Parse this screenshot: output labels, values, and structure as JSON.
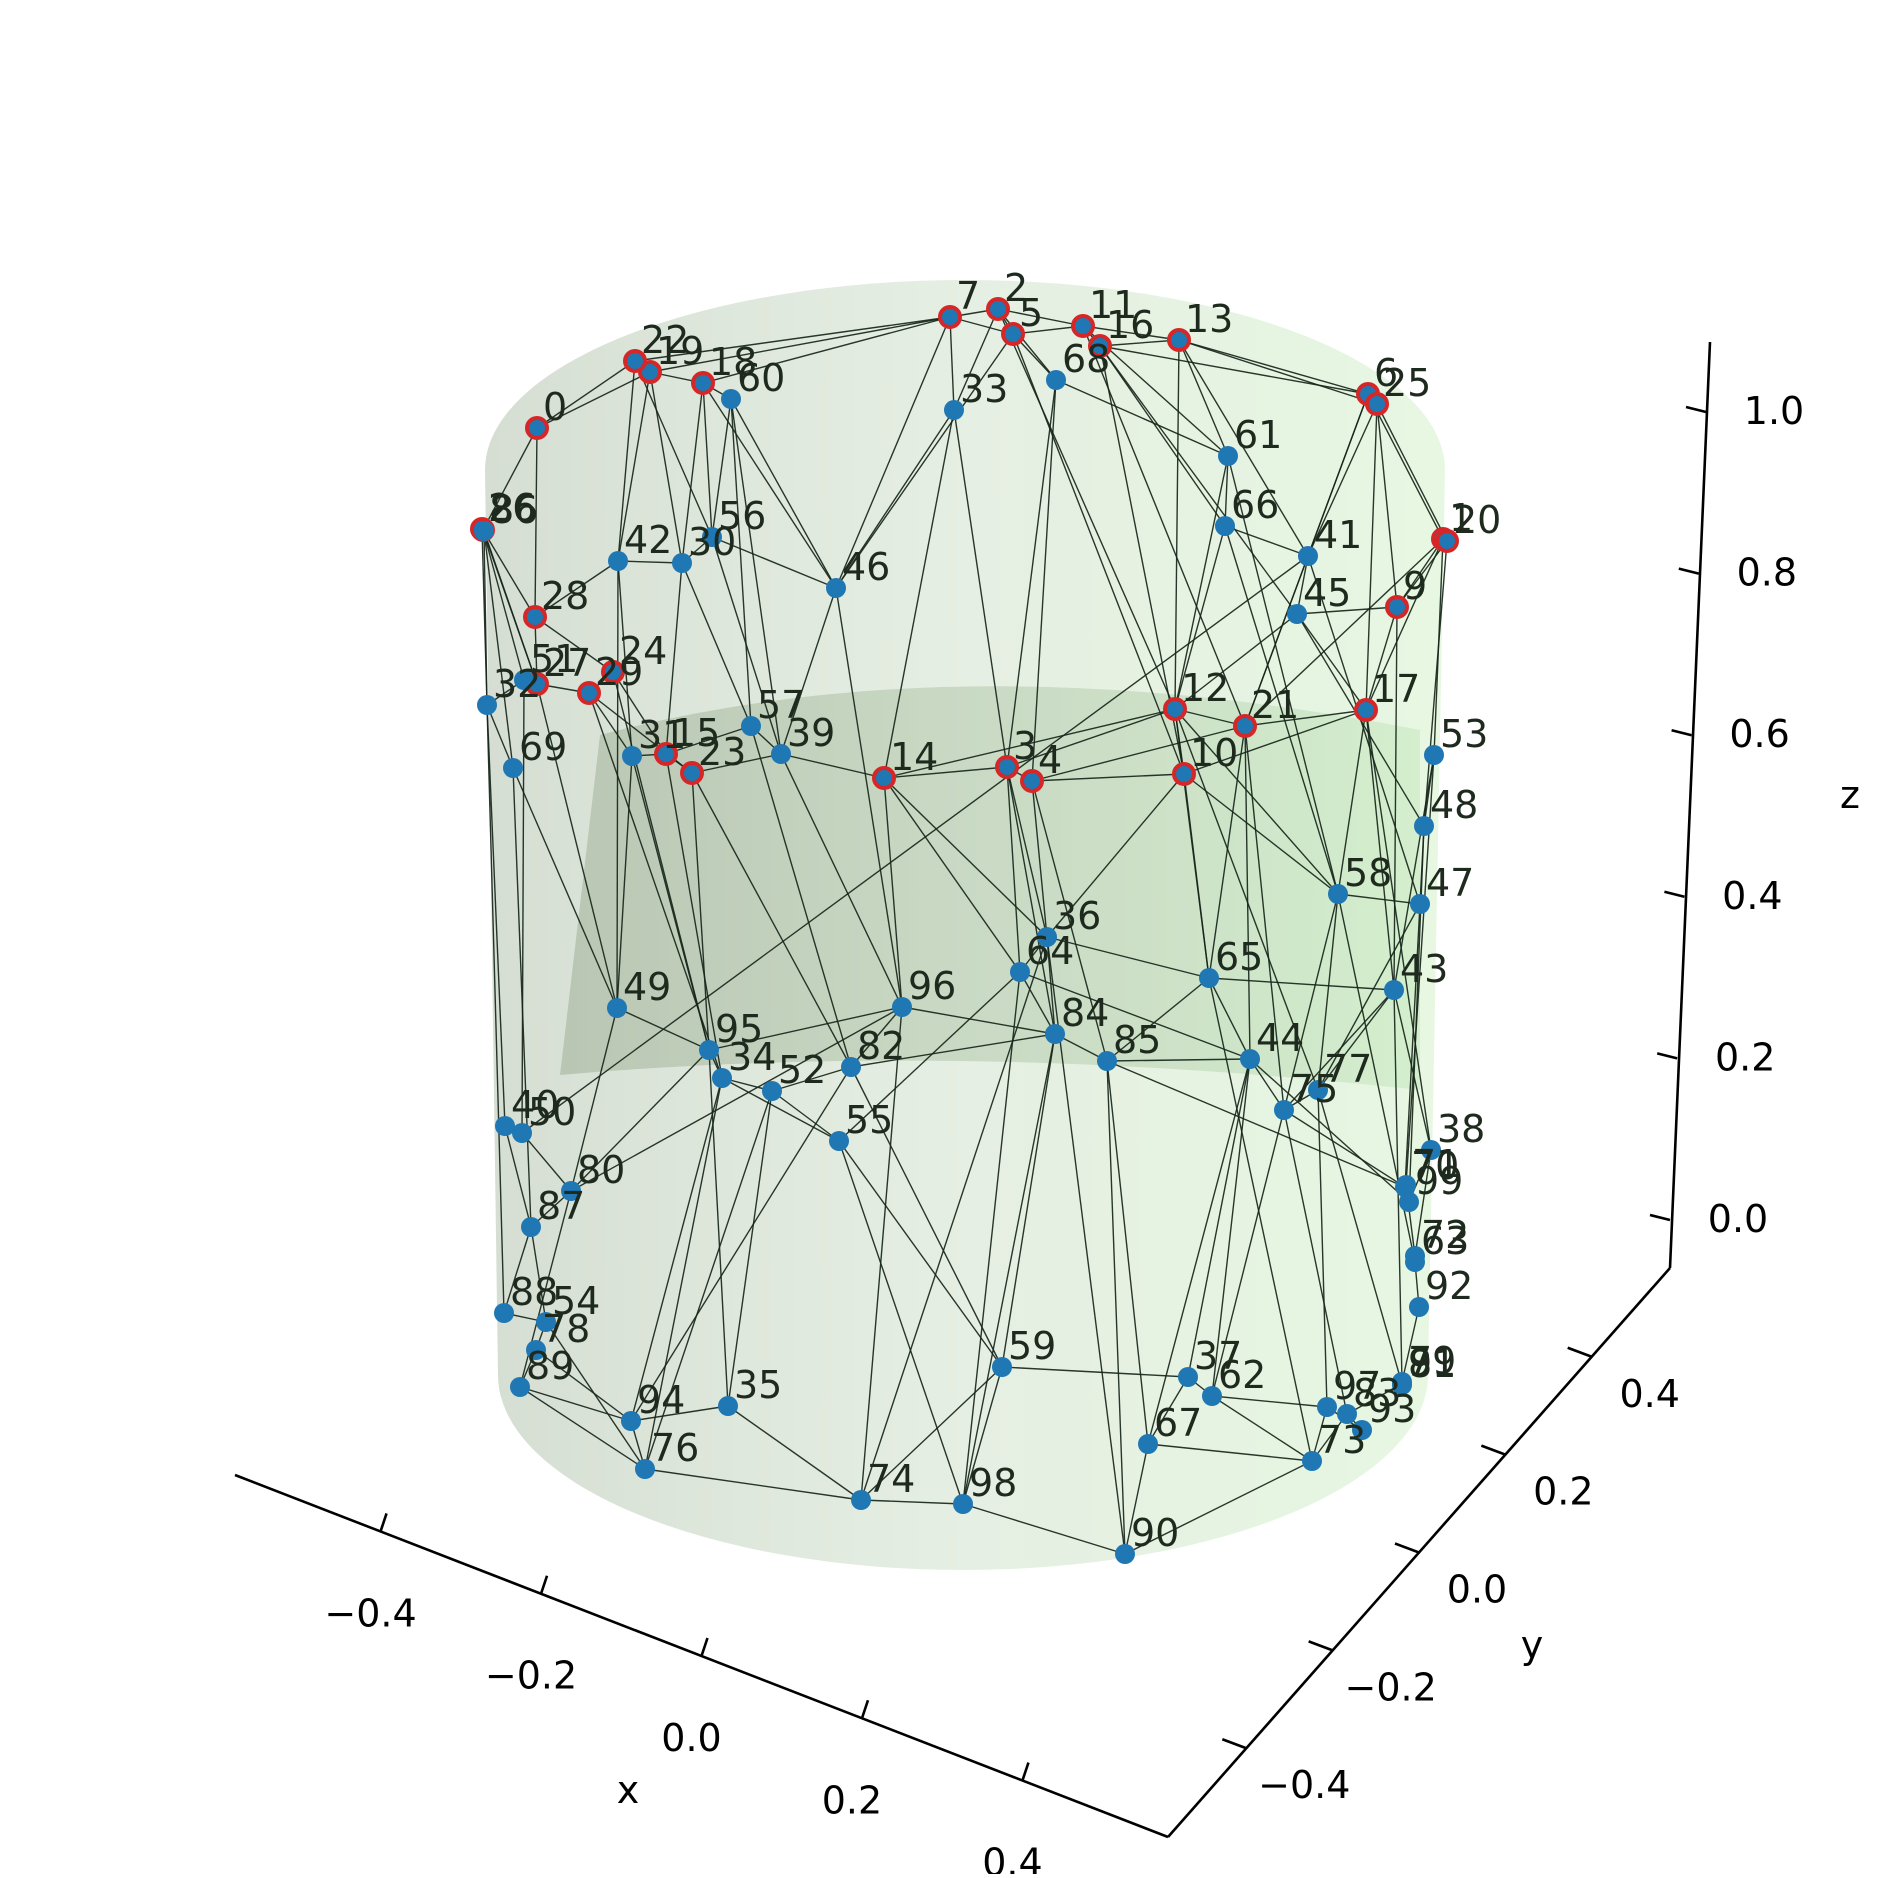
{
  "chart_data": {
    "type": "scatter",
    "title": "",
    "xlabel": "x",
    "ylabel": "y",
    "zlabel": "z",
    "xlim": [
      -0.5,
      0.5
    ],
    "ylim": [
      -0.5,
      0.5
    ],
    "zlim": [
      -0.05,
      1.05
    ],
    "x_ticks": [
      "−0.4",
      "−0.2",
      "0.0",
      "0.2",
      "0.4"
    ],
    "y_ticks": [
      "−0.4",
      "−0.2",
      "0.0",
      "0.2",
      "0.4"
    ],
    "z_ticks": [
      "0.0",
      "0.2",
      "0.4",
      "0.6",
      "0.8",
      "1.0"
    ],
    "surface": "cylinder, radius 0.5, height 1.0, translucent light green",
    "colors": {
      "point_fill": "#1f77b4",
      "boundary_ring": "#d62728",
      "edge": "#17261a",
      "surface_left": "#c8d3c4",
      "surface_right": "#dff5d8"
    },
    "points": [
      {
        "id": 0,
        "label": "0",
        "boundary": true
      },
      {
        "id": 1,
        "label": "1",
        "boundary": true
      },
      {
        "id": 2,
        "label": "2",
        "boundary": true
      },
      {
        "id": 3,
        "label": "3",
        "boundary": true
      },
      {
        "id": 4,
        "label": "4",
        "boundary": true
      },
      {
        "id": 5,
        "label": "5",
        "boundary": true
      },
      {
        "id": 6,
        "label": "6",
        "boundary": true
      },
      {
        "id": 7,
        "label": "7",
        "boundary": true
      },
      {
        "id": 8,
        "label": "8",
        "boundary": true
      },
      {
        "id": 9,
        "label": "9",
        "boundary": true
      },
      {
        "id": 10,
        "label": "10",
        "boundary": true
      },
      {
        "id": 11,
        "label": "11",
        "boundary": true
      },
      {
        "id": 12,
        "label": "12",
        "boundary": true
      },
      {
        "id": 13,
        "label": "13",
        "boundary": true
      },
      {
        "id": 14,
        "label": "14",
        "boundary": true
      },
      {
        "id": 15,
        "label": "15",
        "boundary": true
      },
      {
        "id": 16,
        "label": "16",
        "boundary": true
      },
      {
        "id": 17,
        "label": "17",
        "boundary": true
      },
      {
        "id": 18,
        "label": "18",
        "boundary": true
      },
      {
        "id": 19,
        "label": "19",
        "boundary": true
      },
      {
        "id": 20,
        "label": "20",
        "boundary": true
      },
      {
        "id": 21,
        "label": "21",
        "boundary": true
      },
      {
        "id": 22,
        "label": "22",
        "boundary": true
      },
      {
        "id": 23,
        "label": "23",
        "boundary": true
      },
      {
        "id": 24,
        "label": "24",
        "boundary": true
      },
      {
        "id": 25,
        "label": "25",
        "boundary": true
      },
      {
        "id": 26,
        "label": "26",
        "boundary": true
      },
      {
        "id": 27,
        "label": "27",
        "boundary": true
      },
      {
        "id": 28,
        "label": "28",
        "boundary": true
      },
      {
        "id": 29,
        "label": "29",
        "boundary": true
      },
      {
        "id": 30,
        "label": "30",
        "boundary": false
      },
      {
        "id": 31,
        "label": "31",
        "boundary": false
      },
      {
        "id": 32,
        "label": "32",
        "boundary": false
      },
      {
        "id": 33,
        "label": "33",
        "boundary": false
      },
      {
        "id": 34,
        "label": "34",
        "boundary": false
      },
      {
        "id": 35,
        "label": "35",
        "boundary": false
      },
      {
        "id": 36,
        "label": "36",
        "boundary": false
      },
      {
        "id": 37,
        "label": "37",
        "boundary": false
      },
      {
        "id": 38,
        "label": "38",
        "boundary": false
      },
      {
        "id": 39,
        "label": "39",
        "boundary": false
      },
      {
        "id": 40,
        "label": "40",
        "boundary": false
      },
      {
        "id": 41,
        "label": "41",
        "boundary": false
      },
      {
        "id": 42,
        "label": "42",
        "boundary": false
      },
      {
        "id": 43,
        "label": "43",
        "boundary": false
      },
      {
        "id": 44,
        "label": "44",
        "boundary": false
      },
      {
        "id": 45,
        "label": "45",
        "boundary": false
      },
      {
        "id": 46,
        "label": "46",
        "boundary": false
      },
      {
        "id": 47,
        "label": "47",
        "boundary": false
      },
      {
        "id": 48,
        "label": "48",
        "boundary": false
      },
      {
        "id": 49,
        "label": "49",
        "boundary": false
      },
      {
        "id": 50,
        "label": "50",
        "boundary": false
      },
      {
        "id": 51,
        "label": "51",
        "boundary": false
      },
      {
        "id": 52,
        "label": "52",
        "boundary": false
      },
      {
        "id": 53,
        "label": "53",
        "boundary": false
      },
      {
        "id": 54,
        "label": "54",
        "boundary": false
      },
      {
        "id": 55,
        "label": "55",
        "boundary": false
      },
      {
        "id": 56,
        "label": "56",
        "boundary": false
      },
      {
        "id": 57,
        "label": "57",
        "boundary": false
      },
      {
        "id": 58,
        "label": "58",
        "boundary": false
      },
      {
        "id": 59,
        "label": "59",
        "boundary": false
      },
      {
        "id": 60,
        "label": "60",
        "boundary": false
      },
      {
        "id": 61,
        "label": "61",
        "boundary": false
      },
      {
        "id": 62,
        "label": "62",
        "boundary": false
      },
      {
        "id": 63,
        "label": "63",
        "boundary": false
      },
      {
        "id": 64,
        "label": "64",
        "boundary": false
      },
      {
        "id": 65,
        "label": "65",
        "boundary": false
      },
      {
        "id": 66,
        "label": "66",
        "boundary": false
      },
      {
        "id": 67,
        "label": "67",
        "boundary": false
      },
      {
        "id": 68,
        "label": "68",
        "boundary": false
      },
      {
        "id": 69,
        "label": "69",
        "boundary": false
      },
      {
        "id": 70,
        "label": "70",
        "boundary": false
      },
      {
        "id": 71,
        "label": "71",
        "boundary": false
      },
      {
        "id": 72,
        "label": "72",
        "boundary": false
      },
      {
        "id": 73,
        "label": "73",
        "boundary": false
      },
      {
        "id": 74,
        "label": "74",
        "boundary": false
      },
      {
        "id": 75,
        "label": "75",
        "boundary": false
      },
      {
        "id": 76,
        "label": "76",
        "boundary": false
      },
      {
        "id": 77,
        "label": "77",
        "boundary": false
      },
      {
        "id": 78,
        "label": "78",
        "boundary": false
      },
      {
        "id": 79,
        "label": "79",
        "boundary": false
      },
      {
        "id": 80,
        "label": "80",
        "boundary": false
      },
      {
        "id": 81,
        "label": "81",
        "boundary": false
      },
      {
        "id": 82,
        "label": "82",
        "boundary": false
      },
      {
        "id": 83,
        "label": "83",
        "boundary": false
      },
      {
        "id": 84,
        "label": "84",
        "boundary": false
      },
      {
        "id": 85,
        "label": "85",
        "boundary": false
      },
      {
        "id": 86,
        "label": "86",
        "boundary": false
      },
      {
        "id": 87,
        "label": "87",
        "boundary": false
      },
      {
        "id": 88,
        "label": "88",
        "boundary": false
      },
      {
        "id": 89,
        "label": "89",
        "boundary": false
      },
      {
        "id": 90,
        "label": "90",
        "boundary": false
      },
      {
        "id": 91,
        "label": "91",
        "boundary": false
      },
      {
        "id": 92,
        "label": "92",
        "boundary": false
      },
      {
        "id": 93,
        "label": "93",
        "boundary": false
      },
      {
        "id": 94,
        "label": "94",
        "boundary": false
      },
      {
        "id": 95,
        "label": "95",
        "boundary": false
      },
      {
        "id": 96,
        "label": "96",
        "boundary": false
      },
      {
        "id": 97,
        "label": "97",
        "boundary": false
      },
      {
        "id": 98,
        "label": "98",
        "boundary": false
      },
      {
        "id": 99,
        "label": "99",
        "boundary": false
      }
    ]
  }
}
